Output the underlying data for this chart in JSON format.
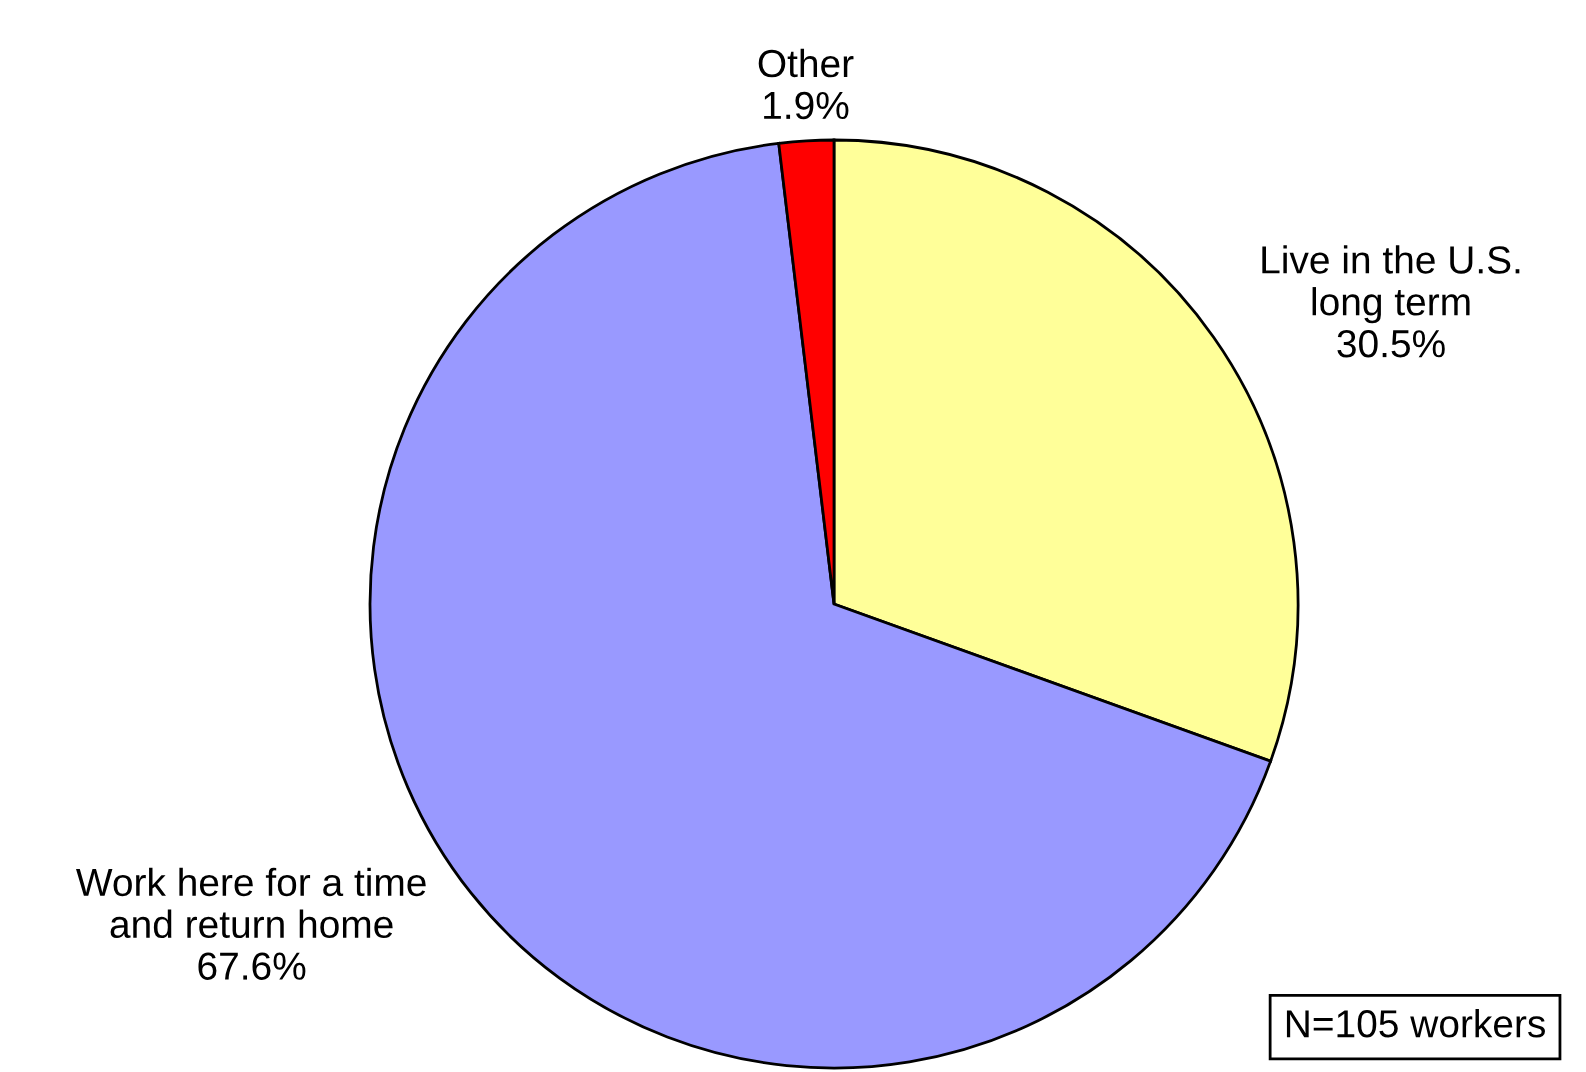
{
  "chart_data": {
    "type": "pie",
    "categories": [
      "Live in the U.S.\nlong term",
      "Work here for a time\nand return home",
      "Other"
    ],
    "values": [
      30.5,
      67.6,
      1.9
    ],
    "colors": [
      "#ffff99",
      "#9999ff",
      "#ff0000"
    ],
    "value_labels": [
      "30.5%",
      "67.6%",
      "1.9%"
    ],
    "legend": false,
    "annotations": [
      "N=105 workers"
    ]
  }
}
